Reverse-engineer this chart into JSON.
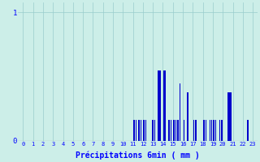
{
  "title": "",
  "xlabel": "Précipitations 6min ( mm )",
  "ylabel": "",
  "xlim": [
    -0.5,
    23.5
  ],
  "ylim": [
    0,
    1.08
  ],
  "yticks": [
    0,
    1
  ],
  "xticks": [
    0,
    1,
    2,
    3,
    4,
    5,
    6,
    7,
    8,
    9,
    10,
    11,
    12,
    13,
    14,
    15,
    16,
    17,
    18,
    19,
    20,
    21,
    22,
    23
  ],
  "background_color": "#cceee8",
  "bar_color": "#0000cc",
  "grid_color": "#99cccc",
  "bars": [
    [
      11.1,
      0.16
    ],
    [
      11.3,
      0.16
    ],
    [
      11.6,
      0.16
    ],
    [
      11.8,
      0.16
    ],
    [
      12.1,
      0.16
    ],
    [
      12.3,
      0.16
    ],
    [
      13.0,
      0.16
    ],
    [
      13.2,
      0.16
    ],
    [
      13.5,
      0.55
    ],
    [
      13.6,
      0.55
    ],
    [
      13.7,
      0.55
    ],
    [
      14.1,
      0.55
    ],
    [
      14.2,
      0.55
    ],
    [
      14.6,
      0.16
    ],
    [
      14.8,
      0.16
    ],
    [
      15.1,
      0.16
    ],
    [
      15.3,
      0.16
    ],
    [
      15.5,
      0.16
    ],
    [
      15.7,
      0.45
    ],
    [
      16.1,
      0.16
    ],
    [
      16.5,
      0.38
    ],
    [
      17.1,
      0.16
    ],
    [
      17.3,
      0.16
    ],
    [
      18.1,
      0.16
    ],
    [
      18.3,
      0.16
    ],
    [
      18.7,
      0.16
    ],
    [
      18.9,
      0.16
    ],
    [
      19.1,
      0.16
    ],
    [
      19.3,
      0.16
    ],
    [
      19.7,
      0.16
    ],
    [
      19.9,
      0.16
    ],
    [
      20.5,
      0.38
    ],
    [
      20.6,
      0.38
    ],
    [
      20.7,
      0.38
    ],
    [
      20.8,
      0.38
    ],
    [
      22.5,
      0.16
    ]
  ],
  "bar_width": 0.12
}
